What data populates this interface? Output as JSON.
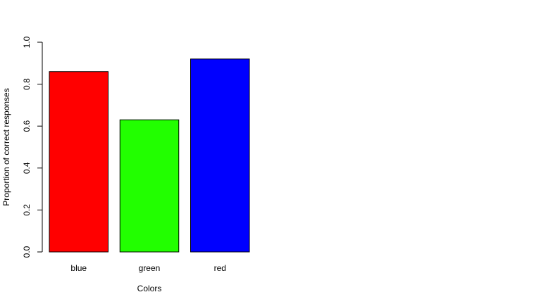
{
  "chart_data": {
    "type": "bar",
    "categories": [
      "blue",
      "green",
      "red"
    ],
    "values": [
      0.86,
      0.63,
      0.92
    ],
    "bar_colors": [
      "#ff0000",
      "#22ff00",
      "#0000ff"
    ],
    "xlabel": "Colors",
    "ylabel": "Proportion of correct responses",
    "ylim": [
      0,
      1
    ],
    "yticks": [
      "0.0",
      "0.2",
      "0.4",
      "0.6",
      "0.8",
      "1.0"
    ],
    "grid": false
  }
}
